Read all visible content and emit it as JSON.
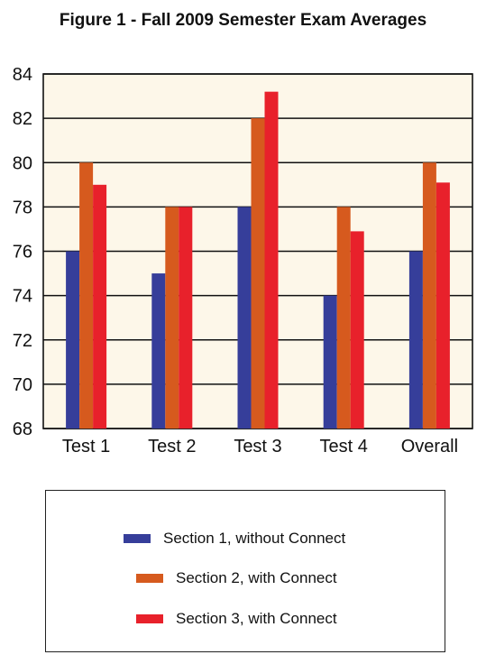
{
  "chart_data": {
    "type": "bar",
    "title": "Figure 1 - Fall 2009 Semester Exam Averages",
    "categories": [
      "Test 1",
      "Test 2",
      "Test 3",
      "Test 4",
      "Overall"
    ],
    "series": [
      {
        "name": "Section 1, without Connect",
        "color": "#363e9a",
        "values": [
          76,
          75,
          78,
          74,
          76
        ]
      },
      {
        "name": "Section 2, with Connect",
        "color": "#d65a1e",
        "values": [
          80,
          78,
          82,
          78,
          80
        ]
      },
      {
        "name": "Section 3, with Connect",
        "color": "#e8212b",
        "values": [
          79,
          78,
          83.2,
          76.9,
          79.1
        ]
      }
    ],
    "ylim": [
      68,
      84
    ],
    "yticks": [
      68,
      70,
      72,
      74,
      76,
      78,
      80,
      82,
      84
    ],
    "grid": true,
    "plot_background": "#fdf7e9",
    "legend_position": "bottom"
  }
}
